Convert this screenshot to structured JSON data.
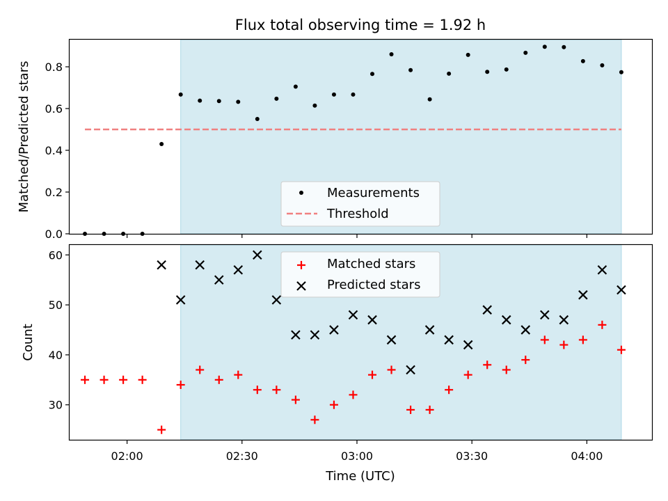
{
  "chart_data": [
    {
      "type": "scatter",
      "title": "Flux total observing time = 1.92 h",
      "xlabel": "",
      "ylabel": "Matched/Predicted stars",
      "ylim": [
        0,
        0.93
      ],
      "yticks": [
        "0.0",
        "0.2",
        "0.4",
        "0.6",
        "0.8"
      ],
      "xlim": [
        "01:45",
        "04:17"
      ],
      "grid": false,
      "legend_position": "lower-center",
      "shaded_interval": {
        "start": "02:14",
        "end": "04:09",
        "color": "#add8e6"
      },
      "series": [
        {
          "name": "Measurements",
          "marker": "dot",
          "color": "#000000",
          "x": [
            "01:49",
            "01:54",
            "01:59",
            "02:04",
            "02:09",
            "02:14",
            "02:19",
            "02:24",
            "02:29",
            "02:34",
            "02:39",
            "02:44",
            "02:49",
            "02:54",
            "02:59",
            "03:04",
            "03:09",
            "03:14",
            "03:19",
            "03:24",
            "03:29",
            "03:34",
            "03:39",
            "03:44",
            "03:49",
            "03:54",
            "03:59",
            "04:04",
            "04:09"
          ],
          "y": [
            0.0,
            0.0,
            0.0,
            0.0,
            0.43,
            0.667,
            0.638,
            0.636,
            0.632,
            0.55,
            0.647,
            0.705,
            0.614,
            0.667,
            0.667,
            0.766,
            0.86,
            0.784,
            0.644,
            0.767,
            0.857,
            0.776,
            0.787,
            0.867,
            0.896,
            0.894,
            0.827,
            0.807,
            0.774
          ]
        },
        {
          "name": "Threshold",
          "marker": "dashed-line",
          "color": "#f08080",
          "x": [
            "01:49",
            "04:09"
          ],
          "y": [
            0.5,
            0.5
          ]
        }
      ]
    },
    {
      "type": "scatter",
      "title": "",
      "xlabel": "Time (UTC)",
      "ylabel": "Count",
      "ylim": [
        23,
        62
      ],
      "yticks": [
        "30",
        "40",
        "50",
        "60"
      ],
      "xlim": [
        "01:45",
        "04:17"
      ],
      "xticks": [
        "02:00",
        "02:30",
        "03:00",
        "03:30",
        "04:00"
      ],
      "grid": false,
      "legend_position": "top-center",
      "shaded_interval": {
        "start": "02:14",
        "end": "04:09",
        "color": "#add8e6"
      },
      "series": [
        {
          "name": "Matched stars",
          "marker": "plus",
          "color": "#ff0000",
          "x": [
            "01:49",
            "01:54",
            "01:59",
            "02:04",
            "02:09",
            "02:14",
            "02:19",
            "02:24",
            "02:29",
            "02:34",
            "02:39",
            "02:44",
            "02:49",
            "02:54",
            "02:59",
            "03:04",
            "03:09",
            "03:14",
            "03:19",
            "03:24",
            "03:29",
            "03:34",
            "03:39",
            "03:44",
            "03:49",
            "03:54",
            "03:59",
            "04:04",
            "04:09"
          ],
          "y": [
            35,
            35,
            35,
            35,
            25,
            34,
            37,
            35,
            36,
            33,
            33,
            31,
            27,
            30,
            32,
            36,
            37,
            29,
            29,
            33,
            36,
            38,
            37,
            39,
            43,
            42,
            43,
            46,
            41
          ]
        },
        {
          "name": "Predicted stars",
          "marker": "x",
          "color": "#000000",
          "x": [
            "02:09",
            "02:14",
            "02:19",
            "02:24",
            "02:29",
            "02:34",
            "02:39",
            "02:44",
            "02:49",
            "02:54",
            "02:59",
            "03:04",
            "03:09",
            "03:14",
            "03:19",
            "03:24",
            "03:29",
            "03:34",
            "03:39",
            "03:44",
            "03:49",
            "03:54",
            "03:59",
            "04:04",
            "04:09"
          ],
          "y": [
            58,
            51,
            58,
            55,
            57,
            60,
            51,
            44,
            44,
            45,
            48,
            47,
            43,
            37,
            45,
            43,
            42,
            49,
            47,
            45,
            48,
            47,
            52,
            57,
            53
          ]
        }
      ]
    }
  ]
}
